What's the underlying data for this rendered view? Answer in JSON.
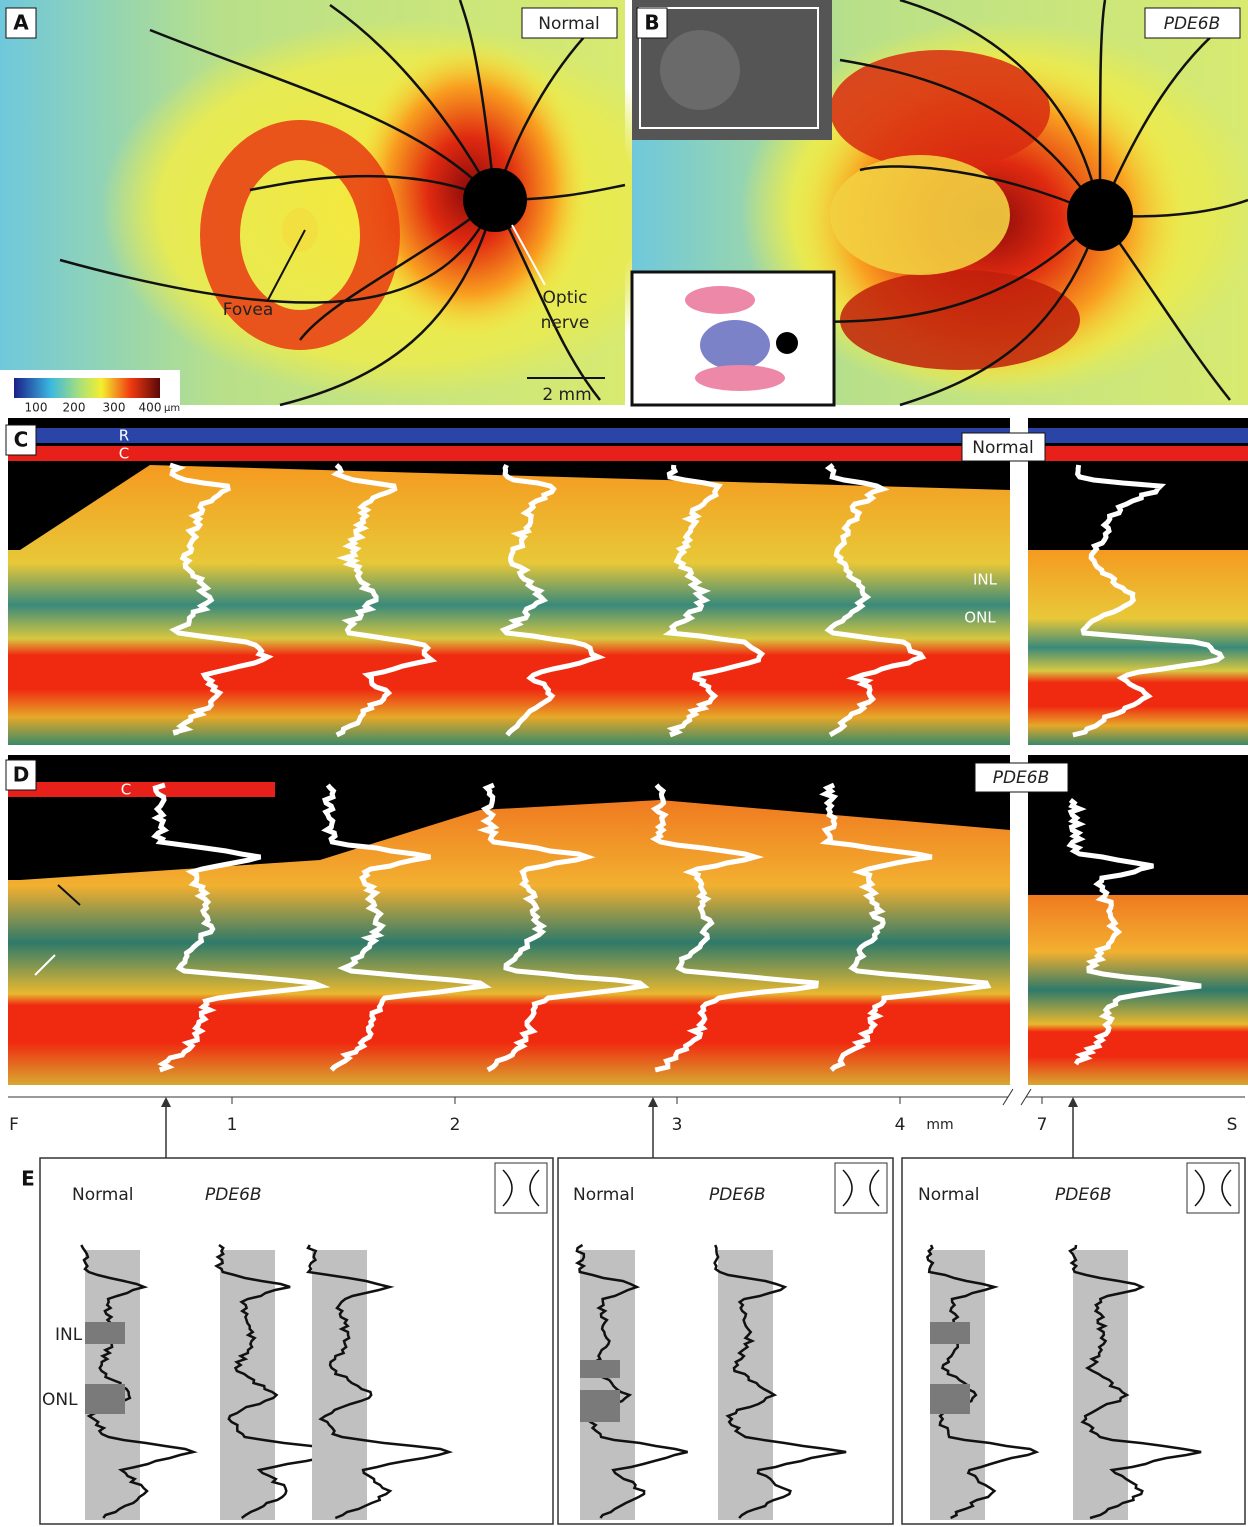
{
  "panel_a": {
    "label": "A",
    "tag": "Normal",
    "fovea": "Fovea",
    "optic_nerve": [
      "Optic",
      "nerve"
    ],
    "scale_bar": "2 mm",
    "colorbar": {
      "ticks": [
        "100",
        "200",
        "300",
        "400"
      ],
      "unit": "µm"
    }
  },
  "panel_b": {
    "label": "B",
    "tag": "PDE6B"
  },
  "panel_c": {
    "label": "C",
    "bars": [
      "R",
      "C"
    ],
    "tag": "Normal",
    "layers": [
      "INL",
      "ONL"
    ]
  },
  "panel_d": {
    "label": "D",
    "bar": "C",
    "tag": "PDE6B"
  },
  "axis": {
    "ticks": [
      "F",
      "1",
      "2",
      "3",
      "4",
      "mm",
      "7",
      "S"
    ]
  },
  "panel_e": {
    "label": "E",
    "boxes": [
      {
        "normal": "Normal",
        "mutant": "PDE6B"
      },
      {
        "normal": "Normal",
        "mutant": "PDE6B"
      },
      {
        "normal": "Normal",
        "mutant": "PDE6B"
      }
    ],
    "layers": [
      "INL",
      "ONL"
    ]
  }
}
